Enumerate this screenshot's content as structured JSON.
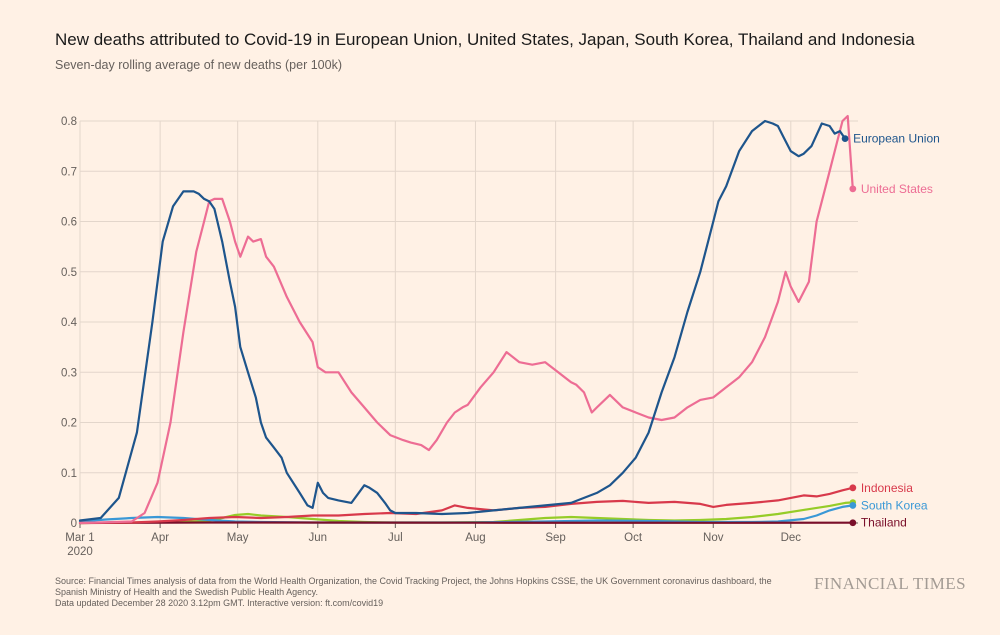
{
  "header": {
    "title": "New deaths attributed to Covid-19 in European Union, United States, Japan, South Korea, Thailand and Indonesia",
    "subtitle": "Seven-day rolling average of new deaths (per 100k)"
  },
  "footer": {
    "line1": "Source: Financial Times analysis of data from the World Health Organization, the Covid Tracking Project, the Johns Hopkins CSSE, the UK Government coronavirus dashboard, the",
    "line2": "Spanish Ministry of Health and the Swedish Public Health Agency.",
    "line3": "Data updated December 28 2020 3.12pm GMT. Interactive version: ft.com/covid19",
    "brand": "FINANCIAL TIMES"
  },
  "chart_data": {
    "type": "line",
    "title": "New deaths attributed to Covid-19 in European Union, United States, Japan, South Korea, Thailand and Indonesia",
    "subtitle": "Seven-day rolling average of new deaths (per 100k)",
    "xlabel": "",
    "ylabel": "",
    "xlim": [
      0,
      301
    ],
    "ylim": [
      0,
      0.8
    ],
    "x_unit": "days since Mar 1 2020",
    "grid": true,
    "legend": "inline-right",
    "y_ticks": [
      0,
      0.1,
      0.2,
      0.3,
      0.4,
      0.5,
      0.6,
      0.7,
      0.8
    ],
    "y_tick_labels": [
      "0",
      "0.1",
      "0.2",
      "0.3",
      "0.4",
      "0.5",
      "0.6",
      "0.7",
      "0.8"
    ],
    "x_ticks": [
      {
        "day": 0,
        "label": "Mar 1",
        "sublabel": "2020"
      },
      {
        "day": 31,
        "label": "Apr"
      },
      {
        "day": 61,
        "label": "May"
      },
      {
        "day": 92,
        "label": "Jun"
      },
      {
        "day": 122,
        "label": "Jul"
      },
      {
        "day": 153,
        "label": "Aug"
      },
      {
        "day": 184,
        "label": "Sep"
      },
      {
        "day": 214,
        "label": "Oct"
      },
      {
        "day": 245,
        "label": "Nov"
      },
      {
        "day": 275,
        "label": "Dec"
      }
    ],
    "series": [
      {
        "name": "Japan",
        "label": "",
        "color": "#96cc28",
        "x": [
          0,
          40,
          50,
          55,
          60,
          65,
          70,
          80,
          90,
          100,
          110,
          120,
          140,
          160,
          170,
          180,
          190,
          200,
          210,
          220,
          230,
          240,
          250,
          260,
          270,
          280,
          290,
          296,
          299
        ],
        "y": [
          0,
          0.002,
          0.005,
          0.01,
          0.016,
          0.018,
          0.015,
          0.012,
          0.008,
          0.004,
          0.002,
          0.001,
          0.001,
          0.002,
          0.006,
          0.01,
          0.012,
          0.01,
          0.008,
          0.006,
          0.005,
          0.006,
          0.008,
          0.012,
          0.018,
          0.026,
          0.034,
          0.04,
          0.041
        ]
      },
      {
        "name": "South Korea",
        "label": "South Korea",
        "color": "#3a98d6",
        "x": [
          0,
          10,
          20,
          30,
          40,
          50,
          60,
          70,
          90,
          120,
          150,
          180,
          200,
          220,
          240,
          260,
          270,
          280,
          285,
          290,
          295,
          299
        ],
        "y": [
          0.003,
          0.007,
          0.01,
          0.012,
          0.01,
          0.006,
          0.003,
          0.002,
          0.001,
          0.001,
          0.001,
          0.003,
          0.005,
          0.004,
          0.002,
          0.002,
          0.003,
          0.008,
          0.015,
          0.025,
          0.032,
          0.035
        ]
      },
      {
        "name": "Thailand",
        "label": "Thailand",
        "color": "#7a0f2a",
        "x": [
          0,
          50,
          150,
          250,
          299
        ],
        "y": [
          0,
          0.001,
          0.0005,
          0.0003,
          0.0005
        ]
      },
      {
        "name": "Indonesia",
        "label": "Indonesia",
        "color": "#d8394b",
        "x": [
          0,
          20,
          30,
          40,
          50,
          60,
          70,
          80,
          90,
          100,
          110,
          120,
          130,
          140,
          145,
          150,
          160,
          170,
          180,
          190,
          200,
          210,
          220,
          230,
          240,
          245,
          250,
          260,
          270,
          275,
          280,
          285,
          290,
          295,
          299
        ],
        "y": [
          0,
          0.001,
          0.003,
          0.006,
          0.01,
          0.012,
          0.01,
          0.012,
          0.015,
          0.015,
          0.018,
          0.02,
          0.018,
          0.025,
          0.035,
          0.03,
          0.025,
          0.03,
          0.032,
          0.038,
          0.042,
          0.044,
          0.04,
          0.042,
          0.038,
          0.032,
          0.036,
          0.04,
          0.045,
          0.05,
          0.055,
          0.053,
          0.058,
          0.065,
          0.07
        ]
      },
      {
        "name": "United States",
        "label": "United States",
        "color": "#ed6d94",
        "x": [
          0,
          20,
          25,
          30,
          35,
          40,
          45,
          48,
          50,
          52,
          55,
          58,
          60,
          62,
          65,
          67,
          70,
          72,
          75,
          80,
          85,
          90,
          92,
          95,
          100,
          105,
          110,
          115,
          120,
          125,
          128,
          132,
          135,
          138,
          142,
          145,
          148,
          150,
          155,
          160,
          165,
          170,
          175,
          180,
          185,
          190,
          192,
          195,
          198,
          200,
          205,
          210,
          215,
          220,
          225,
          230,
          235,
          240,
          245,
          250,
          255,
          260,
          265,
          270,
          273,
          275,
          278,
          282,
          285,
          290,
          293,
          295,
          297,
          299
        ],
        "y": [
          0,
          0.003,
          0.02,
          0.08,
          0.2,
          0.38,
          0.54,
          0.6,
          0.64,
          0.645,
          0.645,
          0.6,
          0.56,
          0.53,
          0.57,
          0.56,
          0.565,
          0.53,
          0.51,
          0.45,
          0.4,
          0.36,
          0.31,
          0.3,
          0.3,
          0.26,
          0.23,
          0.2,
          0.175,
          0.165,
          0.16,
          0.155,
          0.145,
          0.165,
          0.2,
          0.22,
          0.23,
          0.235,
          0.27,
          0.3,
          0.34,
          0.32,
          0.315,
          0.32,
          0.3,
          0.28,
          0.275,
          0.26,
          0.22,
          0.23,
          0.255,
          0.23,
          0.22,
          0.21,
          0.205,
          0.21,
          0.23,
          0.245,
          0.25,
          0.27,
          0.29,
          0.32,
          0.37,
          0.44,
          0.5,
          0.47,
          0.44,
          0.48,
          0.6,
          0.7,
          0.76,
          0.8,
          0.81,
          0.665
        ]
      },
      {
        "name": "European Union",
        "label": "European Union",
        "color": "#1e558c",
        "x": [
          0,
          8,
          15,
          22,
          28,
          32,
          36,
          40,
          44,
          46,
          48,
          50,
          52,
          55,
          58,
          60,
          62,
          65,
          68,
          70,
          72,
          75,
          78,
          80,
          85,
          88,
          90,
          92,
          94,
          96,
          100,
          105,
          110,
          112,
          115,
          118,
          120,
          122,
          130,
          140,
          150,
          160,
          170,
          180,
          190,
          200,
          205,
          210,
          215,
          220,
          225,
          230,
          235,
          240,
          243,
          245,
          247,
          250,
          255,
          260,
          265,
          268,
          270,
          272,
          275,
          278,
          280,
          283,
          287,
          290,
          292,
          294,
          296
        ],
        "y": [
          0.005,
          0.01,
          0.05,
          0.18,
          0.4,
          0.56,
          0.63,
          0.66,
          0.66,
          0.655,
          0.645,
          0.64,
          0.625,
          0.56,
          0.48,
          0.43,
          0.35,
          0.3,
          0.25,
          0.2,
          0.17,
          0.15,
          0.13,
          0.1,
          0.06,
          0.035,
          0.03,
          0.08,
          0.06,
          0.05,
          0.045,
          0.04,
          0.075,
          0.07,
          0.06,
          0.04,
          0.025,
          0.02,
          0.02,
          0.018,
          0.02,
          0.025,
          0.03,
          0.035,
          0.04,
          0.06,
          0.075,
          0.1,
          0.13,
          0.18,
          0.26,
          0.33,
          0.42,
          0.5,
          0.56,
          0.6,
          0.64,
          0.67,
          0.74,
          0.78,
          0.8,
          0.795,
          0.79,
          0.77,
          0.74,
          0.73,
          0.735,
          0.75,
          0.795,
          0.79,
          0.775,
          0.78,
          0.765
        ]
      }
    ]
  }
}
